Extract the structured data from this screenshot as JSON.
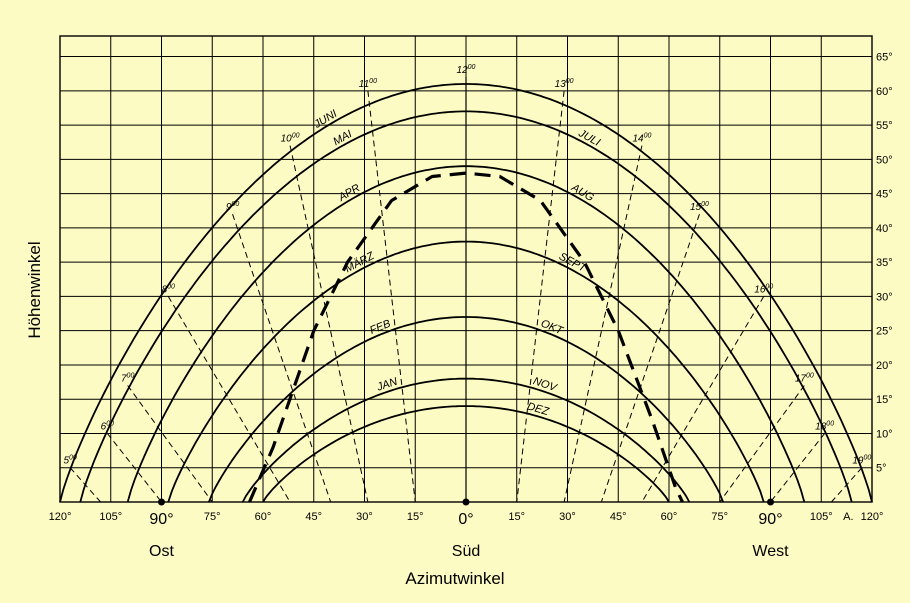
{
  "chart_data": {
    "type": "line",
    "xlabel": "Azimutwinkel",
    "ylabel": "Höhenwinkel",
    "xlim": [
      -120,
      120
    ],
    "ylim": [
      0,
      68
    ],
    "grid": true,
    "x_tick_labels": [
      {
        "x": -120,
        "label": "120°"
      },
      {
        "x": -105,
        "label": "105°"
      },
      {
        "x": -90,
        "label": "90°"
      },
      {
        "x": -75,
        "label": "75°"
      },
      {
        "x": -60,
        "label": "60°"
      },
      {
        "x": -45,
        "label": "45°"
      },
      {
        "x": -30,
        "label": "30°"
      },
      {
        "x": -15,
        "label": "15°"
      },
      {
        "x": 0,
        "label": "0°"
      },
      {
        "x": 15,
        "label": "15°"
      },
      {
        "x": 30,
        "label": "30°"
      },
      {
        "x": 45,
        "label": "45°"
      },
      {
        "x": 60,
        "label": "60°"
      },
      {
        "x": 75,
        "label": "75°"
      },
      {
        "x": 90,
        "label": "90°"
      },
      {
        "x": 105,
        "label": "105°"
      },
      {
        "x": 120,
        "label": "120°"
      }
    ],
    "x_extra_label": "A.",
    "y_tick_labels": [
      "5°",
      "10°",
      "15°",
      "20°",
      "25°",
      "30°",
      "35°",
      "40°",
      "45°",
      "50°",
      "55°",
      "60°",
      "65°"
    ],
    "direction_labels": [
      {
        "x": -90,
        "label": "Ost"
      },
      {
        "x": 0,
        "label": "Süd"
      },
      {
        "x": 90,
        "label": "West"
      }
    ],
    "series": [
      {
        "name": "JUNI",
        "peak": 61,
        "half_width": 120,
        "label_x": -41,
        "label_side": "left"
      },
      {
        "name": "MAI",
        "peak": 57,
        "half_width": 114,
        "label_x": -36,
        "label_side": "left"
      },
      {
        "name": "JULI",
        "peak": 57,
        "half_width": 114,
        "label_x": 36,
        "label_side": "right"
      },
      {
        "name": "APR",
        "peak": 49,
        "half_width": 100,
        "label_x": -34,
        "label_side": "left"
      },
      {
        "name": "AUG",
        "peak": 49,
        "half_width": 100,
        "label_x": 34,
        "label_side": "right"
      },
      {
        "name": "MÄRZ",
        "peak": 38,
        "half_width": 88,
        "label_x": -31,
        "label_side": "left"
      },
      {
        "name": "SEPT",
        "peak": 38,
        "half_width": 88,
        "label_x": 31,
        "label_side": "right"
      },
      {
        "name": "FEB",
        "peak": 27,
        "half_width": 76,
        "label_x": -25,
        "label_side": "left"
      },
      {
        "name": "OKT",
        "peak": 27,
        "half_width": 76,
        "label_x": 25,
        "label_side": "right"
      },
      {
        "name": "JAN",
        "peak": 18,
        "half_width": 66,
        "label_x": -23,
        "label_side": "left"
      },
      {
        "name": "NOV",
        "peak": 18,
        "half_width": 66,
        "label_x": 23,
        "label_side": "right"
      },
      {
        "name": "DEZ",
        "peak": 14,
        "half_width": 60,
        "label_x": 21,
        "label_side": "right"
      }
    ],
    "obstruction_curve": {
      "style": "dashed-bold",
      "points": [
        [
          -64,
          0
        ],
        [
          -57,
          8
        ],
        [
          -45,
          25
        ],
        [
          -35,
          35
        ],
        [
          -22,
          44
        ],
        [
          -10,
          47.5
        ],
        [
          0,
          48
        ],
        [
          10,
          47.5
        ],
        [
          22,
          44
        ],
        [
          35,
          35
        ],
        [
          45,
          25
        ],
        [
          55,
          12
        ],
        [
          62,
          2
        ],
        [
          64,
          0
        ]
      ]
    },
    "hour_lines": [
      {
        "label": "5",
        "points": [
          [
            -117,
            5
          ],
          [
            -108,
            0
          ]
        ]
      },
      {
        "label": "6",
        "points": [
          [
            -106,
            10
          ],
          [
            -90,
            0
          ]
        ]
      },
      {
        "label": "7",
        "points": [
          [
            -100,
            17
          ],
          [
            -75,
            0
          ]
        ]
      },
      {
        "label": "8",
        "points": [
          [
            -88,
            30
          ],
          [
            -52,
            0
          ]
        ]
      },
      {
        "label": "9",
        "points": [
          [
            -69,
            42
          ],
          [
            -40,
            0
          ]
        ]
      },
      {
        "label": "10",
        "points": [
          [
            -52,
            52
          ],
          [
            -29,
            0
          ]
        ]
      },
      {
        "label": "11",
        "points": [
          [
            -29,
            60
          ],
          [
            -15,
            0
          ]
        ]
      },
      {
        "label": "12",
        "points": [
          [
            0,
            62
          ],
          [
            0,
            0
          ]
        ]
      },
      {
        "label": "13",
        "points": [
          [
            29,
            60
          ],
          [
            15,
            0
          ]
        ]
      },
      {
        "label": "14",
        "points": [
          [
            52,
            52
          ],
          [
            29,
            0
          ]
        ]
      },
      {
        "label": "15",
        "points": [
          [
            69,
            42
          ],
          [
            40,
            0
          ]
        ]
      },
      {
        "label": "16",
        "points": [
          [
            88,
            30
          ],
          [
            52,
            0
          ]
        ]
      },
      {
        "label": "17",
        "points": [
          [
            100,
            17
          ],
          [
            75,
            0
          ]
        ]
      },
      {
        "label": "18",
        "points": [
          [
            106,
            10
          ],
          [
            90,
            0
          ]
        ]
      },
      {
        "label": "19",
        "points": [
          [
            117,
            5
          ],
          [
            108,
            0
          ]
        ]
      }
    ],
    "hour_superscript": "00"
  }
}
